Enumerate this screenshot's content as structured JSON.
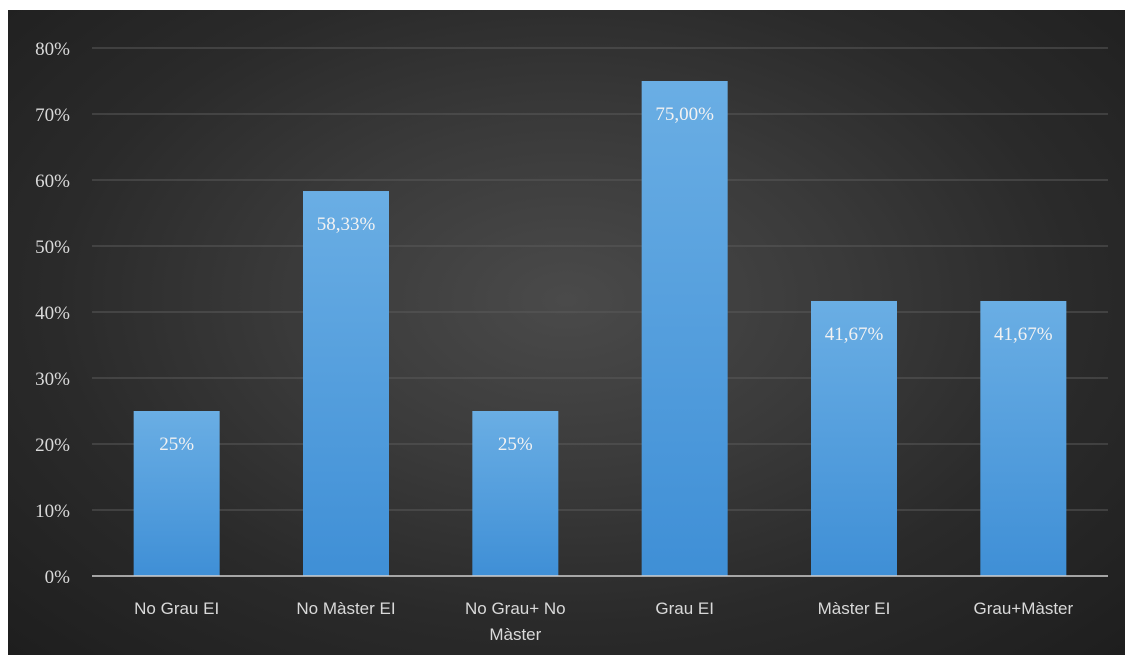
{
  "chart_data": {
    "type": "bar",
    "categories": [
      [
        "No Grau EI"
      ],
      [
        "No Màster EI"
      ],
      [
        "No Grau+ No",
        "Màster"
      ],
      [
        "Grau EI"
      ],
      [
        "Màster EI"
      ],
      [
        "Grau+Màster"
      ]
    ],
    "values": [
      25,
      58.33,
      25,
      75,
      41.67,
      41.67
    ],
    "data_labels": [
      "25%",
      "58,33%",
      "25%",
      "75,00%",
      "41,67%",
      "41,67%"
    ],
    "y_ticks": [
      "0%",
      "10%",
      "20%",
      "30%",
      "40%",
      "50%",
      "60%",
      "70%",
      "80%"
    ],
    "ylim": [
      0,
      80
    ],
    "grid": true,
    "colors": {
      "bar_top": "#6aaee4",
      "bar_bottom": "#3f8fd6",
      "gridline": "#5a5a5a",
      "axis": "#cfcfcf",
      "text": "#d9d9d9"
    }
  }
}
